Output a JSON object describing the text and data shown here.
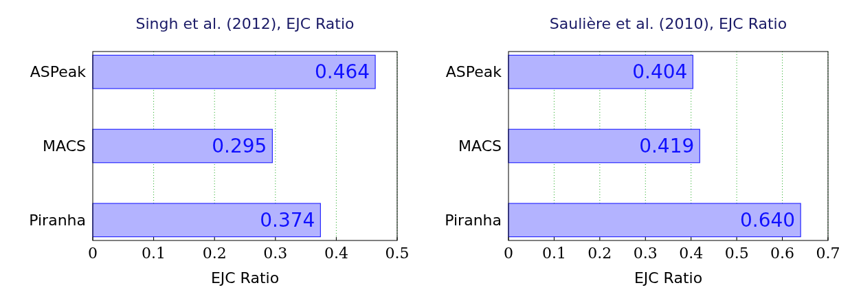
{
  "chart_data": [
    {
      "type": "bar",
      "orientation": "horizontal",
      "title": "Singh et al. (2012), EJC Ratio",
      "xlabel": "EJC Ratio",
      "categories": [
        "ASPeak",
        "MACS",
        "Piranha"
      ],
      "values": [
        0.464,
        0.295,
        0.374
      ],
      "value_labels": [
        "0.464",
        "0.295",
        "0.374"
      ],
      "color": "#b3b3ff",
      "xlim": [
        0,
        0.5
      ],
      "xticks": [
        0,
        0.1,
        0.2,
        0.3,
        0.4,
        0.5
      ],
      "grid": "x"
    },
    {
      "type": "bar",
      "orientation": "horizontal",
      "title": "Saulière et al. (2010), EJC Ratio",
      "xlabel": "EJC Ratio",
      "categories": [
        "ASPeak",
        "MACS",
        "Piranha"
      ],
      "values": [
        0.404,
        0.419,
        0.64
      ],
      "value_labels": [
        "0.404",
        "0.419",
        "0.640"
      ],
      "color": "#b3b3ff",
      "xlim": [
        0,
        0.7
      ],
      "xticks": [
        0,
        0.1,
        0.2,
        0.3,
        0.4,
        0.5,
        0.6,
        0.7
      ],
      "grid": "x"
    }
  ]
}
